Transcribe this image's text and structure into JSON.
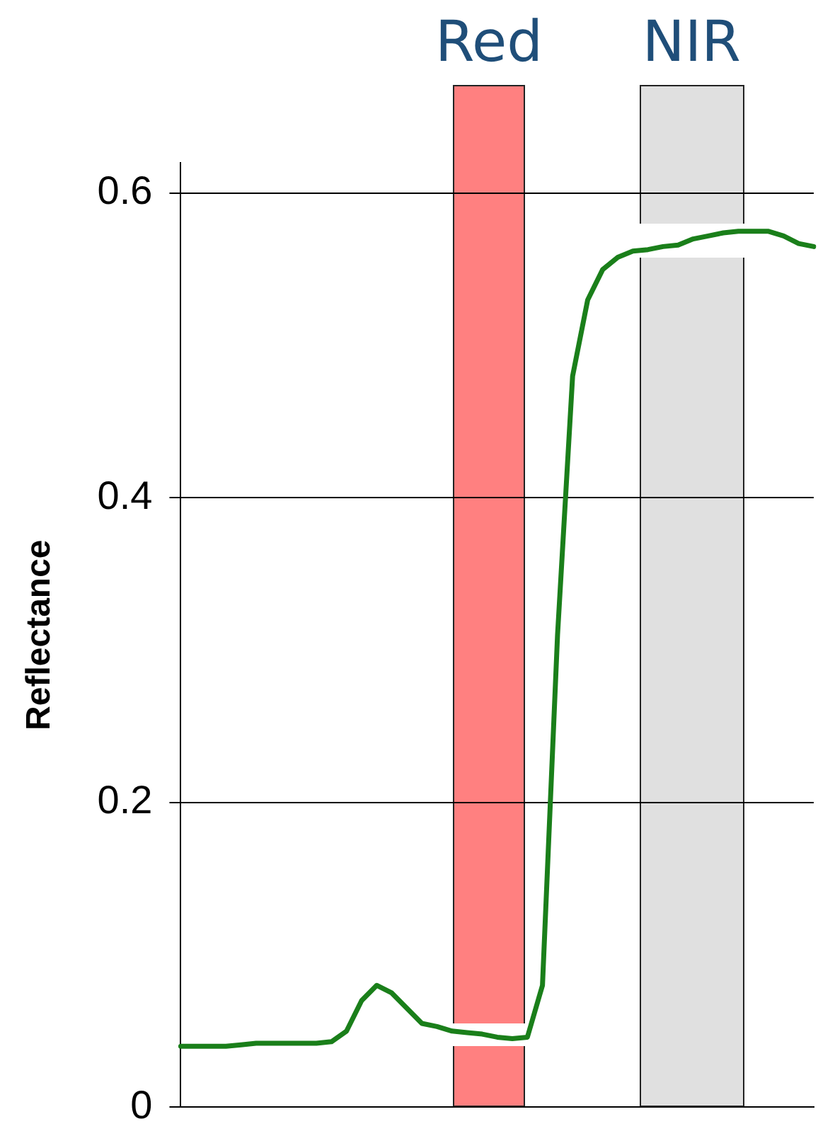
{
  "chart_data": {
    "type": "line",
    "ylabel": "Reflectance",
    "categories": [
      null,
      null,
      null,
      null,
      null,
      null,
      null,
      null,
      null,
      null,
      null,
      null,
      null,
      null,
      null,
      null,
      null,
      null,
      null,
      null,
      null,
      null,
      null,
      null,
      null,
      null,
      null,
      null,
      null,
      null,
      null,
      null,
      null,
      null,
      null,
      null,
      null,
      null,
      null,
      null,
      null,
      null,
      null
    ],
    "series": [
      {
        "color": "#1a7f1a",
        "values": [
          0.04,
          0.04,
          0.04,
          0.04,
          0.041,
          0.042,
          0.042,
          0.042,
          0.042,
          0.042,
          0.043,
          0.05,
          0.07,
          0.08,
          0.075,
          0.065,
          0.055,
          0.053,
          0.05,
          0.049,
          0.048,
          0.046,
          0.045,
          0.046,
          0.08,
          0.31,
          0.48,
          0.53,
          0.55,
          0.558,
          0.562,
          0.563,
          0.565,
          0.566,
          0.57,
          0.572,
          0.574,
          0.575,
          0.575,
          0.575,
          0.572,
          0.567,
          0.565
        ]
      }
    ],
    "ylim": [
      0,
      0.62
    ],
    "yticks": [
      0,
      0.2,
      0.4,
      0.6
    ],
    "grid": "y",
    "tick_labels": "y",
    "marker": "none",
    "line_style": "solid",
    "annotations": [
      "Red",
      "NIR"
    ]
  }
}
